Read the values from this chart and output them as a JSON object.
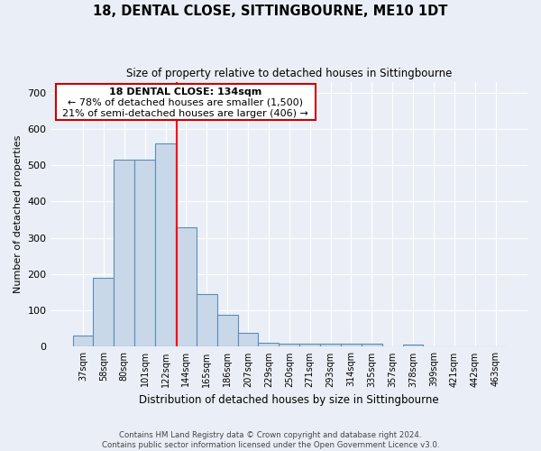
{
  "title": "18, DENTAL CLOSE, SITTINGBOURNE, ME10 1DT",
  "subtitle": "Size of property relative to detached houses in Sittingbourne",
  "xlabel": "Distribution of detached houses by size in Sittingbourne",
  "ylabel": "Number of detached properties",
  "footnote": "Contains HM Land Registry data © Crown copyright and database right 2024.\nContains public sector information licensed under the Open Government Licence v3.0.",
  "bin_labels": [
    "37sqm",
    "58sqm",
    "80sqm",
    "101sqm",
    "122sqm",
    "144sqm",
    "165sqm",
    "186sqm",
    "207sqm",
    "229sqm",
    "250sqm",
    "271sqm",
    "293sqm",
    "314sqm",
    "335sqm",
    "357sqm",
    "378sqm",
    "399sqm",
    "421sqm",
    "442sqm",
    "463sqm"
  ],
  "bar_values": [
    30,
    190,
    515,
    515,
    560,
    330,
    145,
    88,
    38,
    12,
    8,
    8,
    8,
    8,
    8,
    0,
    5,
    0,
    0,
    0,
    0
  ],
  "bar_color": "#c8d8e8",
  "bar_edge_color": "#5b8db8",
  "red_line_x": 4.55,
  "annotation_line1": "18 DENTAL CLOSE: 134sqm",
  "annotation_line2": "← 78% of detached houses are smaller (1,500)",
  "annotation_line3": "21% of semi-detached houses are larger (406) →",
  "ylim": [
    0,
    730
  ],
  "yticks": [
    0,
    100,
    200,
    300,
    400,
    500,
    600,
    700
  ],
  "bg_color": "#eaeff7",
  "plot_bg_color": "#eaeff7",
  "grid_color": "#ffffff",
  "annotation_box_color": "#cc0000"
}
